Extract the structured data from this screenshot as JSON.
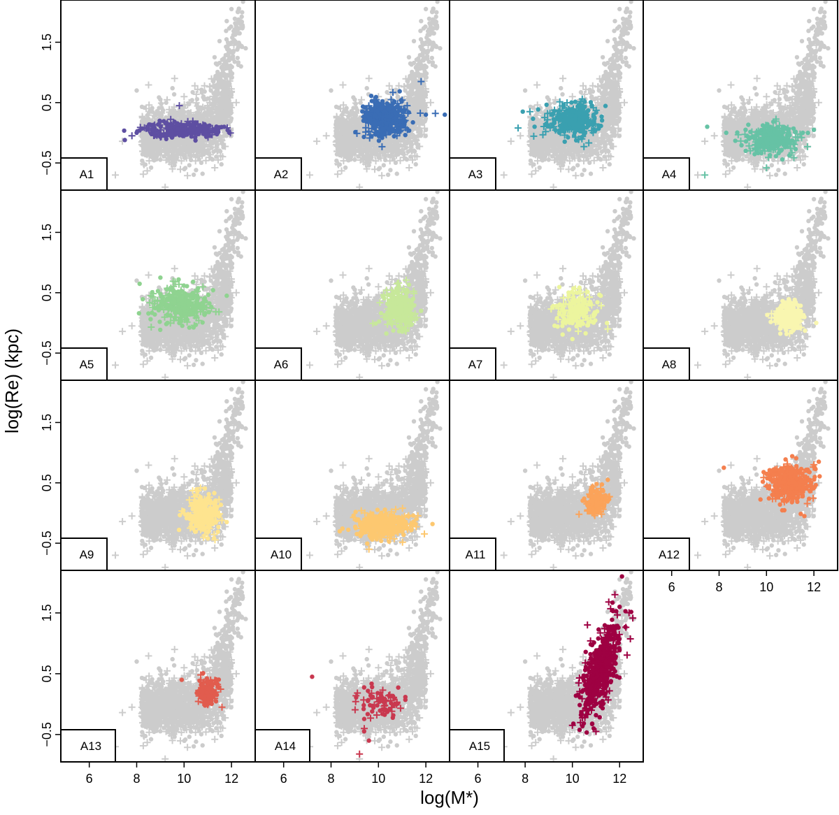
{
  "chart_data": {
    "type": "scatter",
    "layout": "small-multiples 4x4 (15 panels)",
    "xlabel": "log(M*)",
    "ylabel": "log(Re) (kpc)",
    "xlim": [
      4.8,
      13.0
    ],
    "ylim": [
      -0.95,
      2.2
    ],
    "xticks": [
      6,
      8,
      10,
      12
    ],
    "yticks": [
      -0.5,
      0.5,
      1.5
    ],
    "xtick_labels": [
      "6",
      "8",
      "10",
      "12"
    ],
    "ytick_labels": [
      "−0.5",
      "0.5",
      "1.5"
    ],
    "marker_legend": {
      "dot": "filled circle",
      "plus": "plus sign"
    },
    "background": {
      "color": "#cccccc",
      "description_points": [
        [
          7.4,
          -0.14
        ],
        [
          7.8,
          -0.05
        ],
        [
          8.2,
          0.03
        ],
        [
          8.6,
          0.1
        ],
        [
          9.0,
          0.0
        ],
        [
          9.4,
          0.2
        ],
        [
          9.8,
          0.1
        ],
        [
          10.2,
          0.25
        ],
        [
          10.6,
          0.3
        ],
        [
          11.0,
          0.45
        ],
        [
          11.4,
          0.7
        ],
        [
          11.7,
          0.95
        ],
        [
          11.9,
          1.2
        ],
        [
          12.1,
          1.45
        ],
        [
          12.3,
          1.65
        ],
        [
          11.8,
          1.85
        ],
        [
          12.0,
          2.05
        ],
        [
          10.4,
          -0.2
        ],
        [
          9.6,
          -0.25
        ],
        [
          10.8,
          -0.3
        ],
        [
          11.2,
          0.1
        ],
        [
          9.0,
          0.55
        ],
        [
          9.6,
          0.9
        ],
        [
          8.4,
          0.4
        ],
        [
          5.0,
          -0.7
        ],
        [
          7.1,
          -0.7
        ],
        [
          9.2,
          -0.9
        ],
        [
          8.0,
          0.7
        ],
        [
          10.0,
          0.6
        ],
        [
          11.6,
          0.3
        ],
        [
          12.2,
          0.5
        ],
        [
          12.6,
          1.4
        ],
        [
          12.4,
          1.1
        ]
      ]
    },
    "panels": [
      {
        "label": "A1",
        "color": "#5e4fa2",
        "x_center": 9.9,
        "y_center": 0.05,
        "x_spread": 1.8,
        "y_spread": 0.12,
        "n": 260,
        "outliers": [
          [
            7.5,
            -0.12
          ],
          [
            7.8,
            -0.05
          ],
          [
            8.0,
            0.0
          ],
          [
            9.8,
            0.45
          ]
        ]
      },
      {
        "label": "A2",
        "color": "#3a6db5",
        "x_center": 10.3,
        "y_center": 0.25,
        "x_spread": 1.0,
        "y_spread": 0.3,
        "n": 420,
        "outliers": [
          [
            12.0,
            0.3
          ],
          [
            12.4,
            0.32
          ],
          [
            12.8,
            0.3
          ],
          [
            11.8,
            0.85
          ]
        ]
      },
      {
        "label": "A3",
        "color": "#3aa0b0",
        "x_center": 10.0,
        "y_center": 0.2,
        "x_spread": 1.2,
        "y_spread": 0.3,
        "n": 300,
        "outliers": [
          [
            7.9,
            0.35
          ],
          [
            8.2,
            0.35
          ],
          [
            8.4,
            0.1
          ],
          [
            7.7,
            0.08
          ]
        ]
      },
      {
        "label": "A4",
        "color": "#66c2a5",
        "x_center": 10.2,
        "y_center": -0.1,
        "x_spread": 1.2,
        "y_spread": 0.22,
        "n": 280,
        "outliers": [
          [
            7.5,
            0.1
          ],
          [
            7.4,
            -0.7
          ],
          [
            8.3,
            0.0
          ],
          [
            10.0,
            -0.58
          ],
          [
            12.0,
            0.05
          ]
        ]
      },
      {
        "label": "A5",
        "color": "#8fd390",
        "x_center": 9.9,
        "y_center": 0.3,
        "x_spread": 1.2,
        "y_spread": 0.3,
        "n": 300,
        "outliers": [
          [
            9.0,
            0.75
          ],
          [
            8.6,
            0.45
          ],
          [
            11.8,
            0.45
          ]
        ]
      },
      {
        "label": "A6",
        "color": "#c7e89a",
        "x_center": 10.9,
        "y_center": 0.25,
        "x_spread": 0.7,
        "y_spread": 0.35,
        "n": 260,
        "outliers": [
          [
            11.8,
            0.2
          ]
        ]
      },
      {
        "label": "A7",
        "color": "#ecf59e",
        "x_center": 10.2,
        "y_center": 0.2,
        "x_spread": 1.1,
        "y_spread": 0.3,
        "n": 170,
        "outliers": [
          [
            5.1,
            -0.65
          ],
          [
            11.5,
            -0.1
          ],
          [
            11.2,
            0.45
          ]
        ]
      },
      {
        "label": "A8",
        "color": "#f9f6b0",
        "x_center": 11.0,
        "y_center": 0.1,
        "x_spread": 0.7,
        "y_spread": 0.25,
        "n": 230,
        "outliers": [
          [
            12.1,
            0.0
          ]
        ]
      },
      {
        "label": "A9",
        "color": "#fee48f",
        "x_center": 10.8,
        "y_center": 0.0,
        "x_spread": 0.7,
        "y_spread": 0.3,
        "n": 260,
        "outliers": [
          [
            11.8,
            -0.15
          ]
        ]
      },
      {
        "label": "A10",
        "color": "#fdc870",
        "x_center": 10.2,
        "y_center": -0.2,
        "x_spread": 1.4,
        "y_spread": 0.22,
        "n": 360,
        "outliers": [
          [
            11.6,
            -0.1
          ],
          [
            9.6,
            -0.6
          ]
        ]
      },
      {
        "label": "A11",
        "color": "#fba35a",
        "x_center": 11.0,
        "y_center": 0.2,
        "x_spread": 0.45,
        "y_spread": 0.2,
        "n": 150,
        "outliers": [
          [
            11.5,
            0.55
          ]
        ]
      },
      {
        "label": "A12",
        "color": "#f47f4e",
        "x_center": 11.0,
        "y_center": 0.5,
        "x_spread": 1.0,
        "y_spread": 0.3,
        "n": 380,
        "outliers": [
          [
            8.2,
            0.75
          ],
          [
            12.0,
            0.8
          ],
          [
            11.6,
            -0.05
          ]
        ]
      },
      {
        "label": "A13",
        "color": "#e15c4e",
        "x_center": 11.0,
        "y_center": 0.2,
        "x_spread": 0.45,
        "y_spread": 0.22,
        "n": 150,
        "outliers": [
          [
            9.9,
            0.4
          ],
          [
            11.6,
            -0.05
          ]
        ]
      },
      {
        "label": "A14",
        "color": "#c9384f",
        "x_center": 10.2,
        "y_center": 0.05,
        "x_spread": 1.2,
        "y_spread": 0.3,
        "n": 75,
        "outliers": [
          [
            7.2,
            0.45
          ],
          [
            9.2,
            -0.82
          ],
          [
            9.6,
            -0.6
          ],
          [
            9.4,
            -0.4
          ]
        ]
      },
      {
        "label": "A15",
        "color": "#9e0142",
        "x_center": 11.2,
        "y_center": 0.6,
        "x_spread": 0.9,
        "y_spread": 0.55,
        "n": 520,
        "outliers": [
          [
            12.1,
            2.1
          ],
          [
            11.8,
            1.8
          ],
          [
            12.0,
            1.6
          ],
          [
            10.0,
            -0.35
          ],
          [
            10.9,
            -0.4
          ],
          [
            11.0,
            -0.45
          ]
        ]
      }
    ]
  }
}
